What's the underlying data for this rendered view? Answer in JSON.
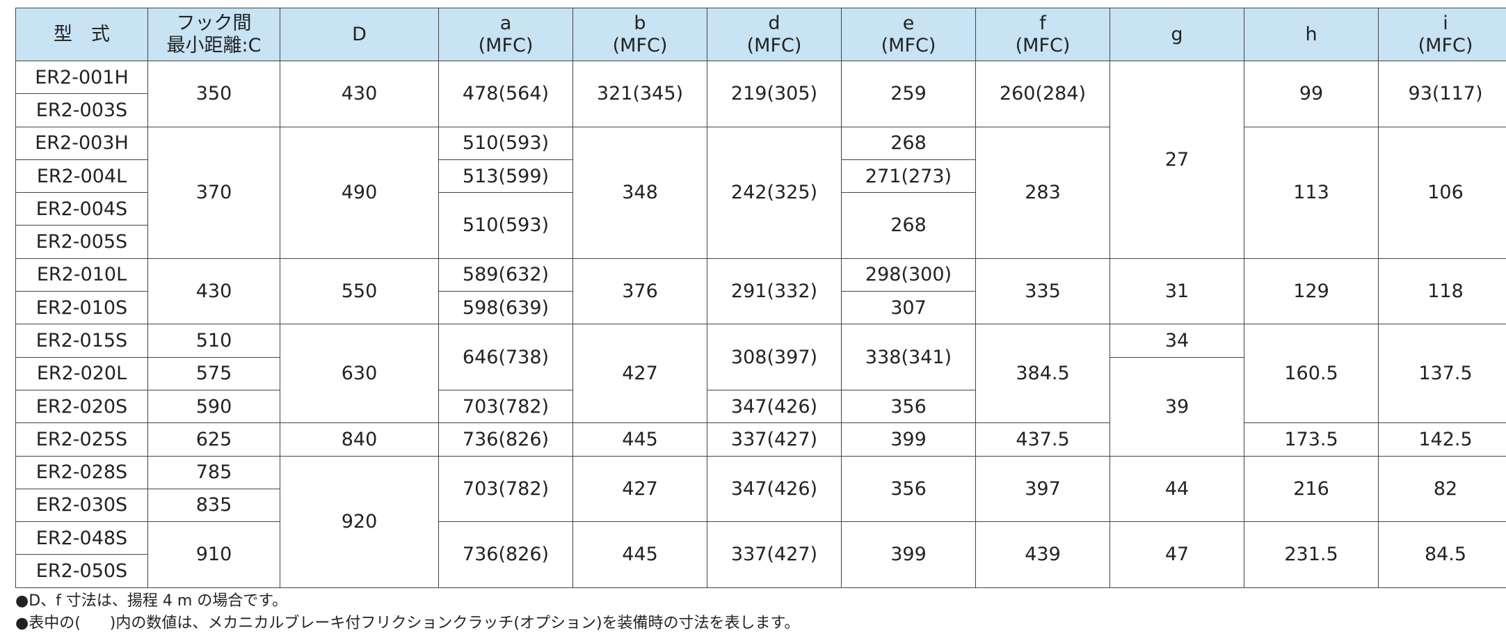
{
  "headers": {
    "model": "型　式",
    "hook_line1": "フック間",
    "hook_line2": "最小距離:C",
    "D": "D",
    "a": "a",
    "b": "b",
    "d": "d",
    "e": "e",
    "f": "f",
    "g": "g",
    "h": "h",
    "i": "i",
    "mfc": "(MFC)"
  },
  "models": [
    "ER2-001H",
    "ER2-003S",
    "ER2-003H",
    "ER2-004L",
    "ER2-004S",
    "ER2-005S",
    "ER2-010L",
    "ER2-010S",
    "ER2-015S",
    "ER2-020L",
    "ER2-020S",
    "ER2-025S",
    "ER2-028S",
    "ER2-030S",
    "ER2-048S",
    "ER2-050S"
  ],
  "cells": {
    "c1": "350",
    "c2": "370",
    "c3": "430",
    "c4": "510",
    "c5": "575",
    "c6": "590",
    "c7": "625",
    "c8": "785",
    "c9": "835",
    "c10": "910",
    "D1": "430",
    "D2": "490",
    "D3": "550",
    "D4": "630",
    "D5": "840",
    "D6": "920",
    "a1": "478(564)",
    "a2": "510(593)",
    "a3": "513(599)",
    "a4": "510(593)",
    "a5": "589(632)",
    "a6": "598(639)",
    "a7": "646(738)",
    "a8": "703(782)",
    "a9": "736(826)",
    "a10": "703(782)",
    "a11": "736(826)",
    "b1": "321(345)",
    "b2": "348",
    "b3": "376",
    "b4": "427",
    "b5": "445",
    "b6": "427",
    "b7": "445",
    "d1": "219(305)",
    "d2": "242(325)",
    "d3": "291(332)",
    "d4": "308(397)",
    "d5": "347(426)",
    "d6": "337(427)",
    "d7": "347(426)",
    "d8": "337(427)",
    "e1": "259",
    "e2": "268",
    "e3": "271(273)",
    "e4": "268",
    "e5": "298(300)",
    "e6": "307",
    "e7": "338(341)",
    "e8": "356",
    "e9": "399",
    "e10": "356",
    "e11": "399",
    "f1": "260(284)",
    "f2": "283",
    "f3": "335",
    "f4": "384.5",
    "f5": "437.5",
    "f6": "397",
    "f7": "439",
    "g1": "27",
    "g2": "31",
    "g3": "34",
    "g4": "39",
    "g5": "44",
    "g6": "47",
    "h1": "99",
    "h2": "113",
    "h3": "129",
    "h4": "160.5",
    "h5": "173.5",
    "h6": "216",
    "h7": "231.5",
    "i1": "93(117)",
    "i2": "106",
    "i3": "118",
    "i4": "137.5",
    "i5": "142.5",
    "i6": "82",
    "i7": "84.5"
  },
  "notes": {
    "note1": "●D、f 寸法は、揚程 4 m の場合です。",
    "note2_a": "●表中の(",
    "note2_b": ")内の数値は、メカニカルブレーキ付フリクションクラッチ(オプション)を装備時の寸法を表します。"
  }
}
